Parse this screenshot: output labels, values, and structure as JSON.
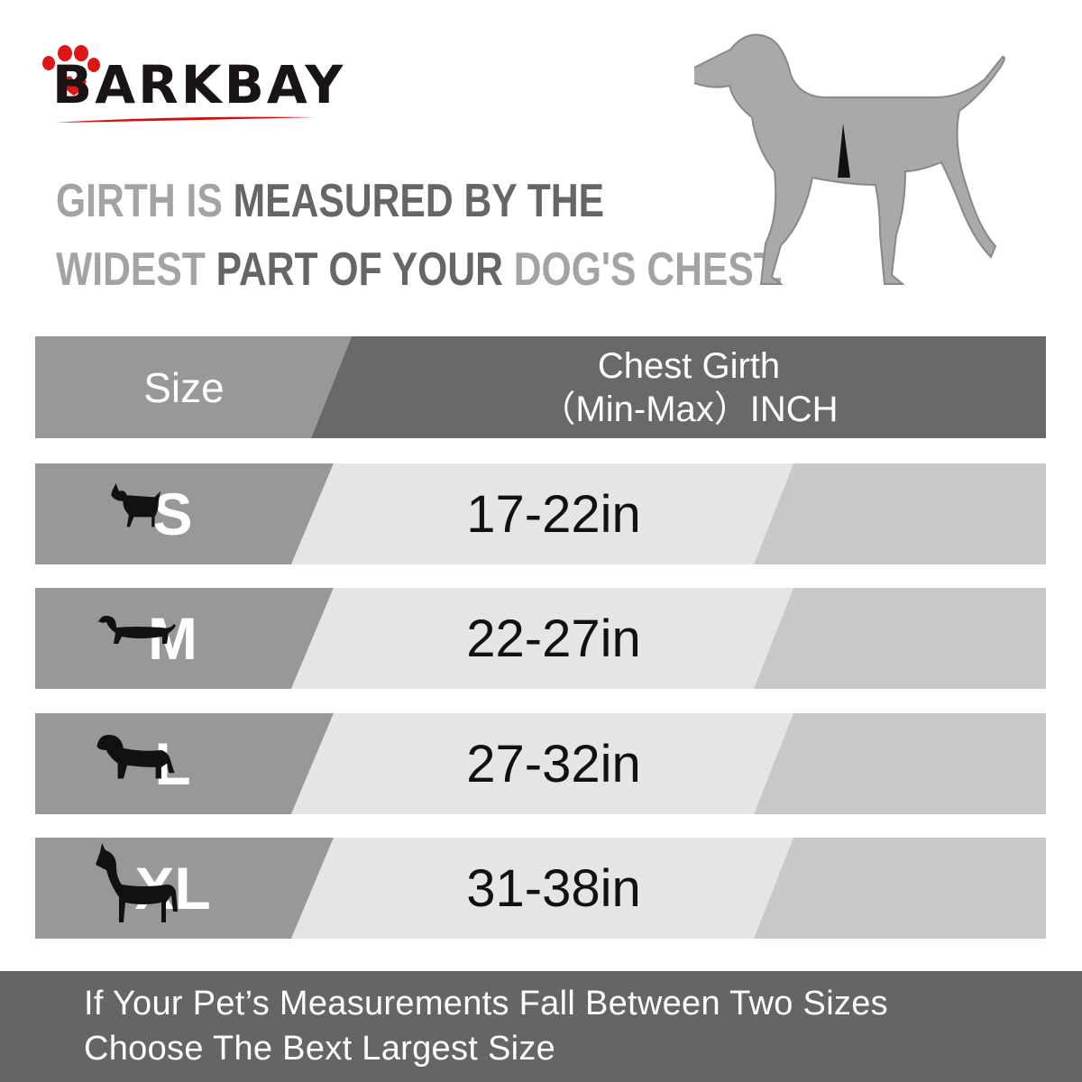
{
  "brand": {
    "logo_text": "BARKBAY",
    "paw_color": "#e01515"
  },
  "heading": {
    "line1": [
      {
        "t": "GIRTH IS ",
        "tone": "light"
      },
      {
        "t": "MEASURED BY THE",
        "tone": "dark"
      }
    ],
    "line2": [
      {
        "t": "WIDEST ",
        "tone": "light"
      },
      {
        "t": "PART OF YOUR ",
        "tone": "dark"
      },
      {
        "t": "DOG'S CHEST.",
        "tone": "light"
      }
    ]
  },
  "table": {
    "header": {
      "size": "Size",
      "girth_line1": "Chest Girth",
      "girth_line2": "（Min-Max）INCH"
    },
    "rows": [
      {
        "size": "S",
        "girth": "17-22in",
        "dog_icon": "chihuahua-icon"
      },
      {
        "size": "M",
        "girth": "22-27in",
        "dog_icon": "dachshund-icon"
      },
      {
        "size": "L",
        "girth": "27-32in",
        "dog_icon": "rottweiler-icon"
      },
      {
        "size": "XL",
        "girth": "31-38in",
        "dog_icon": "great-dane-icon"
      }
    ]
  },
  "footer": {
    "line1": "If Your Pet’s Measurements Fall Between Two Sizes",
    "line2": "Choose The Bext Largest Size"
  },
  "colors": {
    "size_cell": "#999898",
    "header_dark": "#6a6868",
    "girth_cell": "#e6e5e5",
    "icon_cell": "#c9c8c8",
    "footer": "#666565"
  }
}
